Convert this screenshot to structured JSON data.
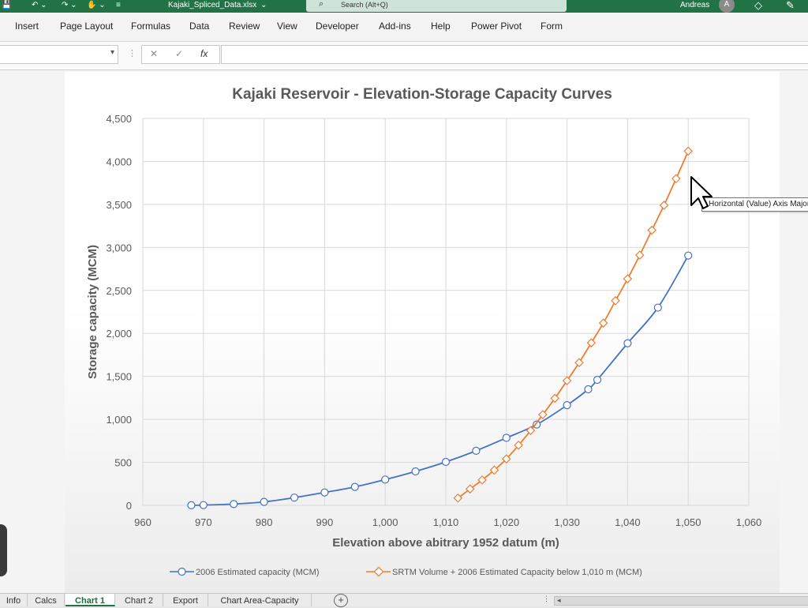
{
  "window": {
    "filename": "Kajaki_Spliced_Data.xlsx",
    "search_placeholder": "Search (Alt+Q)",
    "user_name": "Andreas",
    "user_initial": "A"
  },
  "ribbon": {
    "tabs": [
      "Insert",
      "Page Layout",
      "Formulas",
      "Data",
      "Review",
      "View",
      "Developer",
      "Add-ins",
      "Help",
      "Power Pivot",
      "Form"
    ]
  },
  "formula_bar": {
    "cancel_symbol": "✕",
    "enter_symbol": "✓",
    "fx_symbol": "fx",
    "formula_value": ""
  },
  "sheet_tabs": {
    "tabs": [
      "Info",
      "Calcs",
      "Chart 1",
      "Chart 2",
      "Export",
      "Chart Area-Capacity"
    ],
    "active": "Chart 1"
  },
  "tooltip": {
    "text": "Horizontal (Value) Axis Major Gridlines"
  },
  "colors": {
    "series1": "#4472c4",
    "series2": "#ed7d31",
    "grid": "#d9d9d9",
    "excel_green": "#217346"
  },
  "chart_data": {
    "type": "scatter",
    "title": "Kajaki Reservoir - Elevation-Storage Capacity Curves",
    "xlabel": "Elevation above abitrary 1952 datum (m)",
    "ylabel": "Storage capacity (MCM)",
    "xlim": [
      960,
      1060
    ],
    "ylim": [
      0,
      4500
    ],
    "xticks": [
      960,
      970,
      980,
      990,
      1000,
      1010,
      1020,
      1030,
      1040,
      1050,
      1060
    ],
    "yticks": [
      0,
      500,
      1000,
      1500,
      2000,
      2500,
      3000,
      3500,
      4000,
      4500
    ],
    "xtick_labels": [
      "960",
      "970",
      "980",
      "990",
      "1,000",
      "1,010",
      "1,020",
      "1,030",
      "1,040",
      "1,050",
      "1,060"
    ],
    "ytick_labels": [
      "0",
      "500",
      "1,000",
      "1,500",
      "2,000",
      "2,500",
      "3,000",
      "3,500",
      "4,000",
      "4,500"
    ],
    "grid": true,
    "legend_position": "bottom",
    "series": [
      {
        "name": "2006 Estimated capacity (MCM)",
        "marker": "circle",
        "color": "#4472c4",
        "x": [
          968,
          970,
          975,
          980,
          985,
          990,
          995,
          1000,
          1005,
          1010,
          1015,
          1020,
          1025,
          1030,
          1033.5,
          1035,
          1040,
          1045,
          1050
        ],
        "y": [
          1,
          3,
          15,
          40,
          90,
          150,
          215,
          300,
          395,
          505,
          635,
          785,
          940,
          1165,
          1350,
          1460,
          1885,
          2300,
          2905
        ]
      },
      {
        "name": "SRTM Volume + 2006 Estimated Capacity below 1,010 m (MCM)",
        "marker": "diamond",
        "color": "#ed7d31",
        "x": [
          1012,
          1014,
          1016,
          1018,
          1020,
          1022,
          1024,
          1026,
          1028,
          1030,
          1032,
          1034,
          1036,
          1038,
          1040,
          1042,
          1044,
          1046,
          1048,
          1050
        ],
        "y": [
          85,
          190,
          295,
          410,
          540,
          700,
          870,
          1055,
          1245,
          1450,
          1660,
          1890,
          2120,
          2380,
          2635,
          2910,
          3200,
          3490,
          3800,
          4120
        ]
      }
    ]
  }
}
